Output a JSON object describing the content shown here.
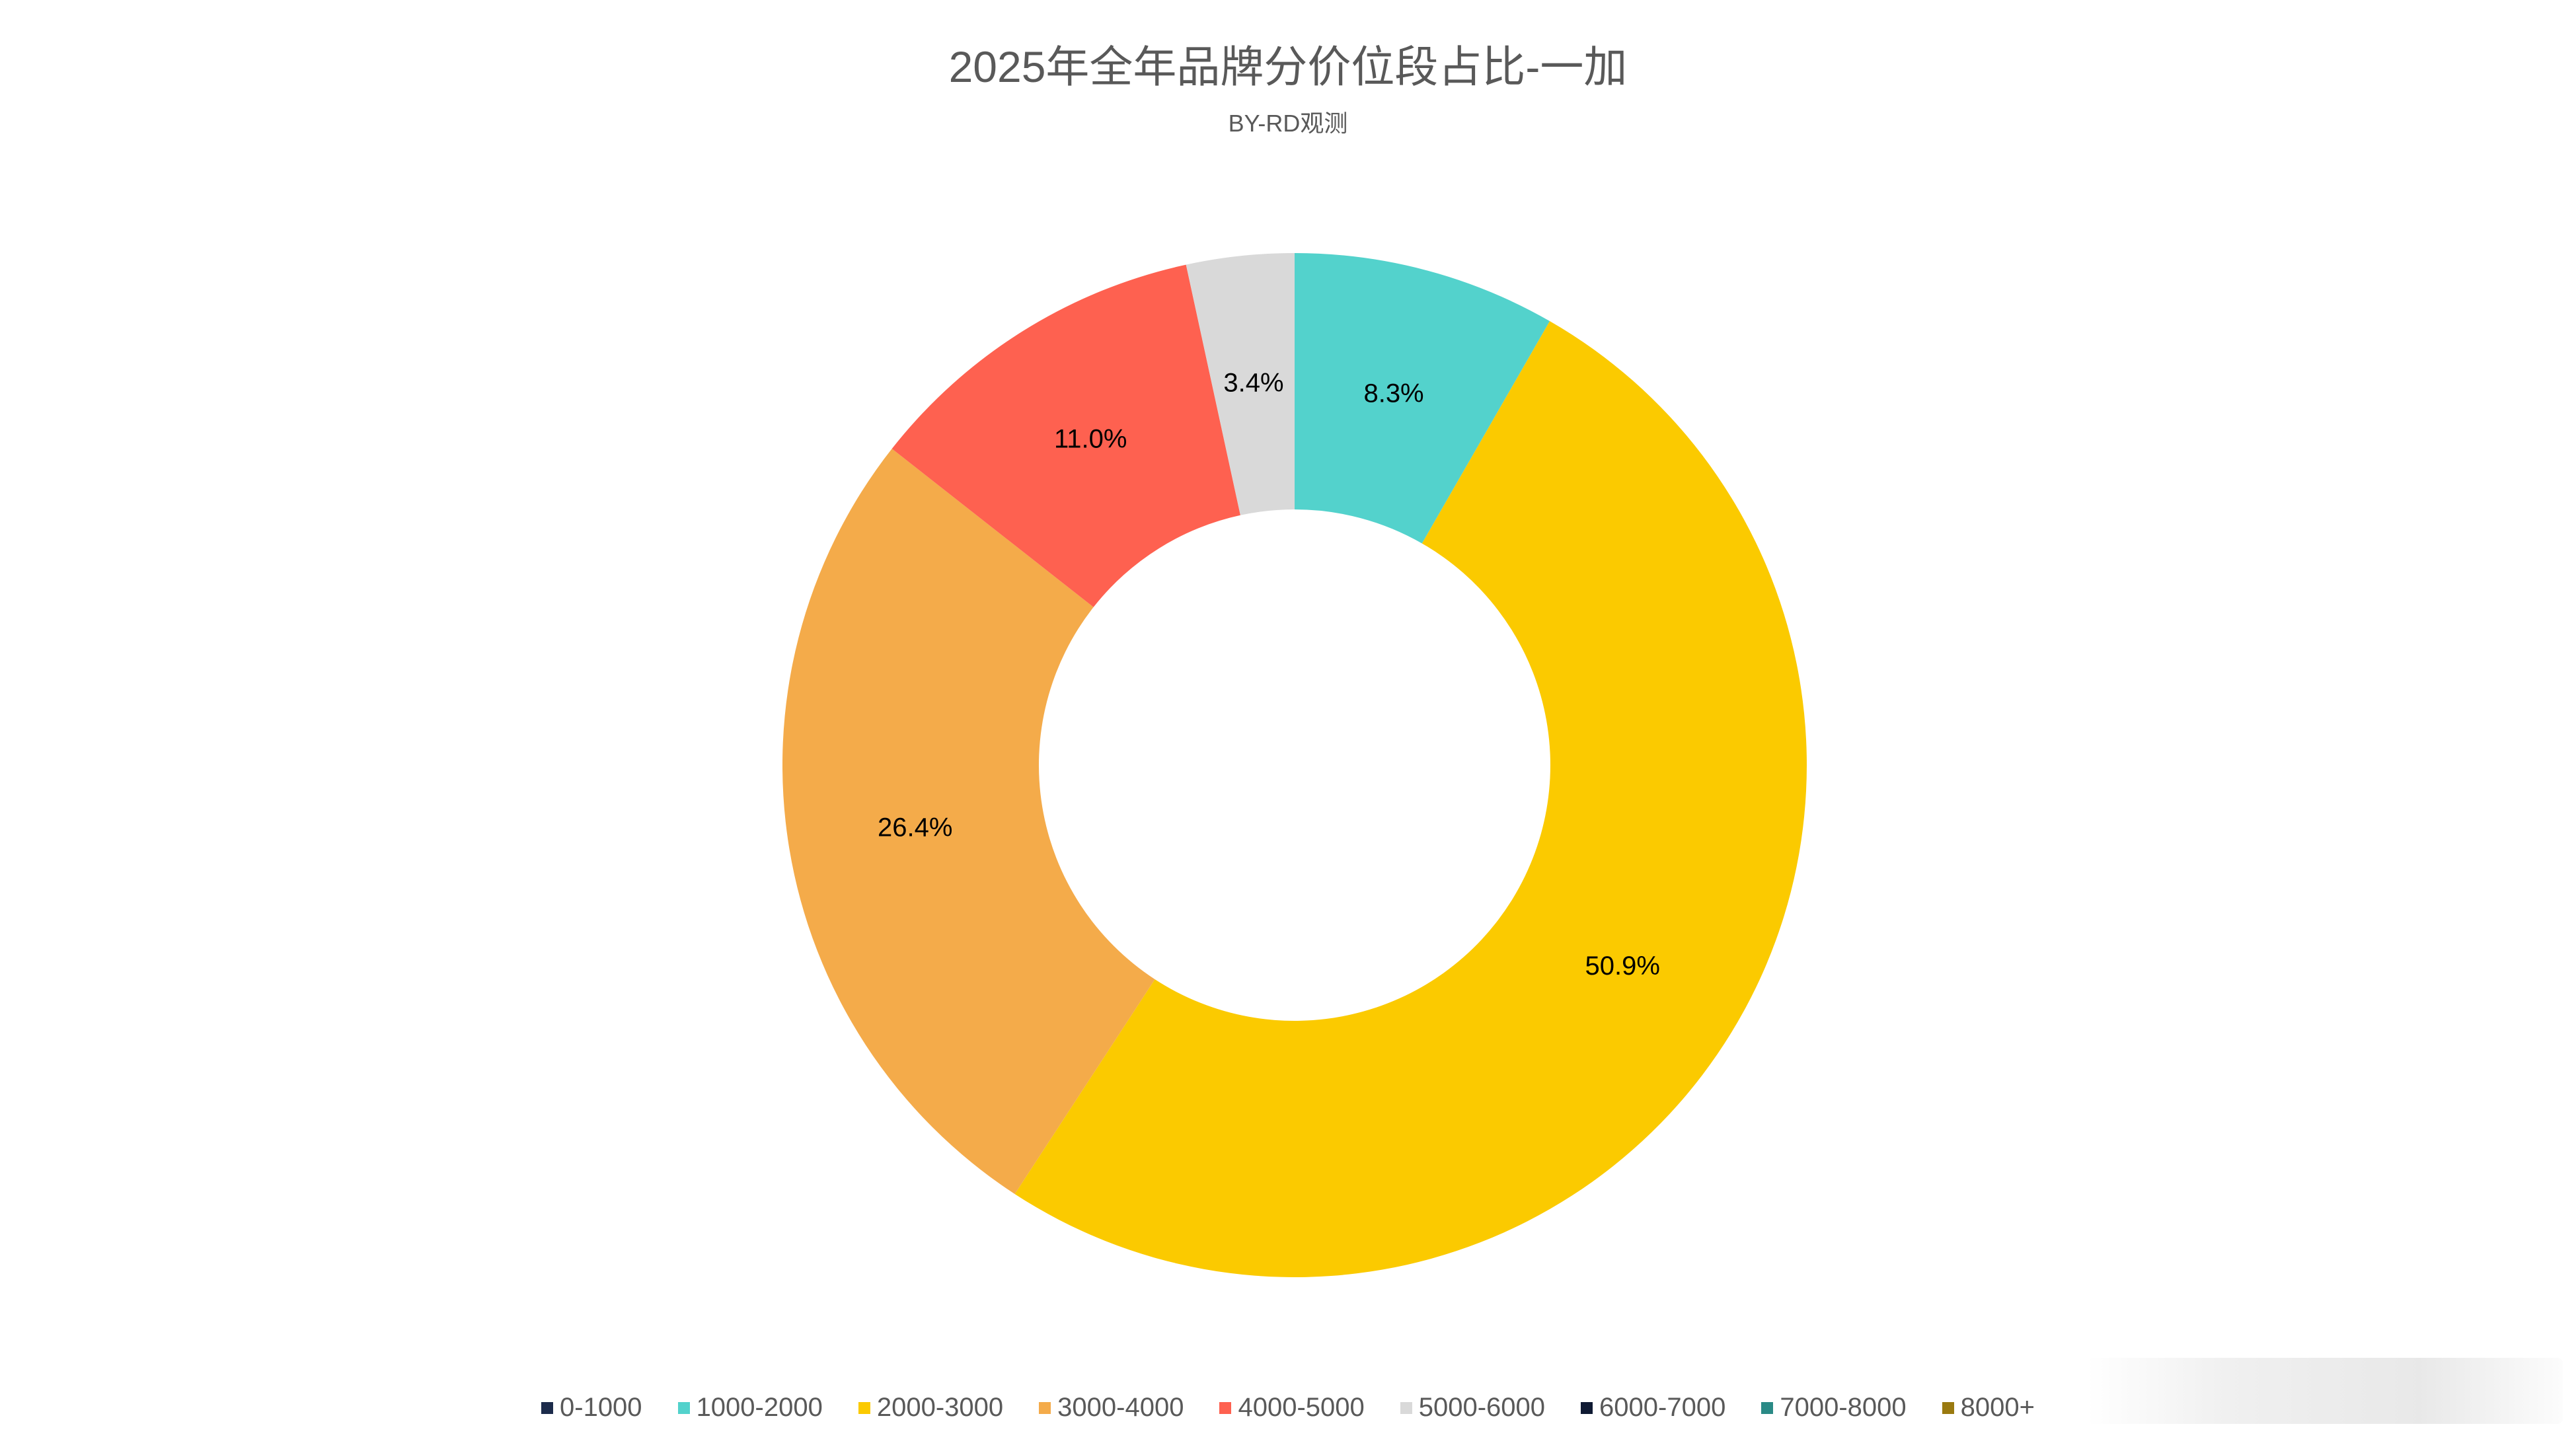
{
  "chart_data": {
    "type": "pie",
    "donut": true,
    "title": "2025年全年品牌分价位段占比-一加",
    "subtitle": "BY-RD观测",
    "legend_position": "bottom",
    "categories": [
      "0-1000",
      "1000-2000",
      "2000-3000",
      "3000-4000",
      "4000-5000",
      "5000-6000",
      "6000-7000",
      "7000-8000",
      "8000+"
    ],
    "values": [
      0,
      8.3,
      50.9,
      26.4,
      11.0,
      3.4,
      0,
      0,
      0
    ],
    "labels": [
      "",
      "8.3%",
      "50.9%",
      "26.4%",
      "11.0%",
      "3.4%",
      "",
      "",
      ""
    ],
    "colors": [
      "#1c2b4b",
      "#53d2cc",
      "#fbca00",
      "#f4ab4a",
      "#fe6150",
      "#d9d9d9",
      "#0f1a33",
      "#2a8a86",
      "#9a7a10"
    ],
    "start_angle_deg": 0,
    "direction": "clockwise"
  }
}
